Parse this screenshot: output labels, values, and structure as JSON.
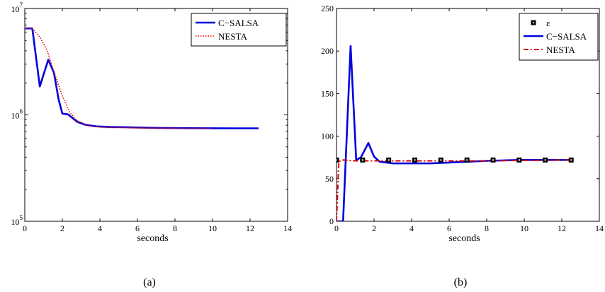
{
  "chart_data": [
    {
      "type": "line",
      "caption": "(a)",
      "xlabel": "seconds",
      "ylabel": "",
      "xlim": [
        0,
        14
      ],
      "xticks": [
        0,
        2,
        4,
        6,
        8,
        10,
        12,
        14
      ],
      "yscale": "log",
      "ylim": [
        100000,
        10000000
      ],
      "yticks": [
        {
          "value": 100000,
          "base": "10",
          "exp": "5"
        },
        {
          "value": 1000000,
          "base": "10",
          "exp": "6"
        },
        {
          "value": 10000000,
          "base": "10",
          "exp": "7"
        }
      ],
      "grid": false,
      "legend_position": "top-right",
      "series": [
        {
          "name": "C−SALSA",
          "color": "#0000dd",
          "style": "solid",
          "x": [
            0,
            0.4,
            0.8,
            1.25,
            1.55,
            1.8,
            2.0,
            2.3,
            2.8,
            3.2,
            3.8,
            4.5,
            5.5,
            7,
            9,
            11,
            12.45
          ],
          "y": [
            6500000,
            6500000,
            1850000,
            3300000,
            2500000,
            1400000,
            1030000,
            1010000,
            860000,
            810000,
            780000,
            770000,
            765000,
            755000,
            750000,
            748000,
            748000
          ]
        },
        {
          "name": "NESTA",
          "color": "#ee0000",
          "style": "dotted",
          "x": [
            0,
            0.4,
            0.8,
            1.2,
            1.6,
            2.0,
            2.4,
            2.8,
            3.4,
            4.2,
            5,
            6,
            8,
            10
          ],
          "y": [
            6500000,
            6500000,
            5400000,
            4000000,
            2400000,
            1500000,
            1050000,
            880000,
            790000,
            760000,
            758000,
            752000,
            750000,
            748000
          ]
        }
      ]
    },
    {
      "type": "line",
      "caption": "(b)",
      "xlabel": "seconds",
      "ylabel": "",
      "xlim": [
        0,
        14
      ],
      "xticks": [
        0,
        2,
        4,
        6,
        8,
        10,
        12,
        14
      ],
      "ylim": [
        0,
        250
      ],
      "yticks": [
        0,
        50,
        100,
        150,
        200,
        250
      ],
      "grid": false,
      "legend_position": "top-right",
      "series": [
        {
          "name": "ε",
          "color": "#000000",
          "style": "markers",
          "x": [
            0,
            1.39,
            2.78,
            4.17,
            5.56,
            6.95,
            8.34,
            9.73,
            11.12,
            12.5
          ],
          "y": [
            72,
            72,
            72,
            72,
            72,
            72,
            72,
            72,
            72,
            72
          ]
        },
        {
          "name": "C−SALSA",
          "color": "#0000dd",
          "style": "solid",
          "x": [
            0,
            0.35,
            0.75,
            1.05,
            1.3,
            1.7,
            2.0,
            2.3,
            3.0,
            4,
            5,
            6,
            7,
            8,
            9.7,
            11,
            12.45
          ],
          "y": [
            0,
            0,
            206,
            72,
            75,
            92,
            76,
            70,
            68,
            68,
            68,
            69,
            70,
            71,
            72,
            72,
            72
          ]
        },
        {
          "name": "NESTA",
          "color": "#dd0000",
          "style": "dashdot",
          "x": [
            0,
            0.12,
            0.35,
            1,
            2,
            4,
            6,
            8,
            10,
            12.45
          ],
          "y": [
            0,
            70,
            72,
            71,
            71,
            71,
            71,
            71,
            71.5,
            72
          ]
        }
      ]
    }
  ]
}
